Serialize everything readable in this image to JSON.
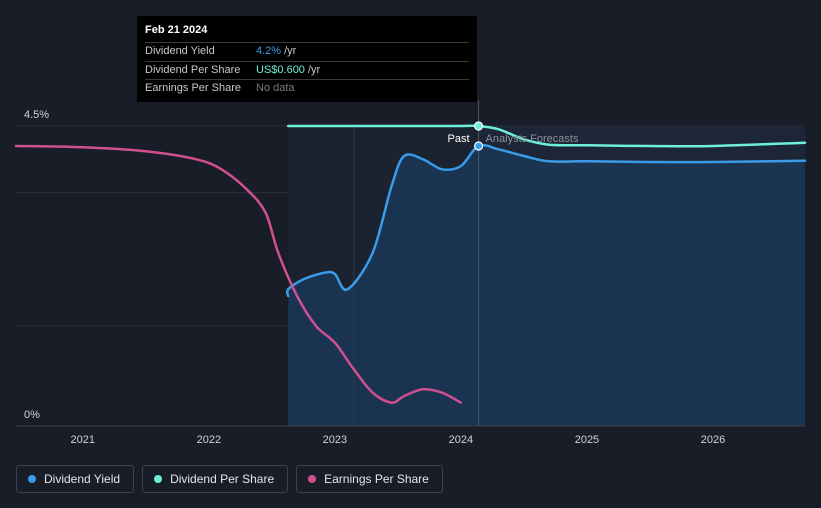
{
  "tooltip": {
    "date": "Feb 21 2024",
    "rows": [
      {
        "label": "Dividend Yield",
        "value": "4.2%",
        "unit": "/yr"
      },
      {
        "label": "Dividend Per Share",
        "value": "US$0.600",
        "unit": "/yr"
      },
      {
        "label": "Earnings Per Share",
        "value": "No data",
        "unit": ""
      }
    ]
  },
  "labels": {
    "past": "Past",
    "forecast": "Analysts Forecasts"
  },
  "legend": [
    {
      "label": "Dividend Yield",
      "color": "#3a9ce8"
    },
    {
      "label": "Dividend Per Share",
      "color": "#6ef0d8"
    },
    {
      "label": "Earnings Per Share",
      "color": "#d0508f"
    }
  ],
  "chart_data": {
    "type": "line",
    "ylim": [
      0,
      4.5
    ],
    "y_ticks": [
      "0%",
      "4.5%"
    ],
    "x_ticks": [
      {
        "year": 2021,
        "label": "2021"
      },
      {
        "year": 2022,
        "label": "2022"
      },
      {
        "year": 2023,
        "label": "2023"
      },
      {
        "year": 2024,
        "label": "2024"
      },
      {
        "year": 2025,
        "label": "2025"
      },
      {
        "year": 2026,
        "label": "2026"
      }
    ],
    "x_range": [
      2020.47,
      2026.73
    ],
    "past_start": 2022.63,
    "shade_start": 2023.15,
    "highlight_x": 2024.14,
    "series": [
      {
        "name": "Dividend Yield",
        "color": "#3a9ce8",
        "x": [
          2022.63,
          2022.63,
          2022.75,
          2022.92,
          2023.0,
          2023.1,
          2023.3,
          2023.45,
          2023.55,
          2023.7,
          2023.85,
          2024.0,
          2024.14,
          2024.3,
          2024.5,
          2024.7,
          2025.0,
          2025.5,
          2026.0,
          2026.73
        ],
        "y": [
          1.95,
          2.05,
          2.2,
          2.3,
          2.28,
          2.05,
          2.6,
          3.6,
          4.05,
          4.0,
          3.85,
          3.9,
          4.2,
          4.15,
          4.05,
          3.97,
          3.97,
          3.96,
          3.96,
          3.98
        ]
      },
      {
        "name": "Dividend Per Share",
        "color": "#6ef0d8",
        "x": [
          2022.63,
          2023.0,
          2023.5,
          2024.0,
          2024.14,
          2024.3,
          2024.5,
          2024.7,
          2025.0,
          2025.5,
          2026.0,
          2026.73
        ],
        "y": [
          4.5,
          4.5,
          4.5,
          4.5,
          4.5,
          4.45,
          4.3,
          4.22,
          4.21,
          4.2,
          4.2,
          4.25
        ]
      },
      {
        "name": "Earnings Per Share",
        "color": "#d0508f",
        "x": [
          2020.47,
          2021.0,
          2021.5,
          2021.9,
          2022.1,
          2022.3,
          2022.45,
          2022.55,
          2022.7,
          2022.85,
          2023.0,
          2023.15,
          2023.3,
          2023.45,
          2023.55,
          2023.7,
          2023.85,
          2024.0
        ],
        "y": [
          4.2,
          4.18,
          4.12,
          4.0,
          3.85,
          3.55,
          3.2,
          2.6,
          1.95,
          1.5,
          1.25,
          0.85,
          0.5,
          0.35,
          0.45,
          0.55,
          0.5,
          0.35
        ]
      }
    ]
  }
}
